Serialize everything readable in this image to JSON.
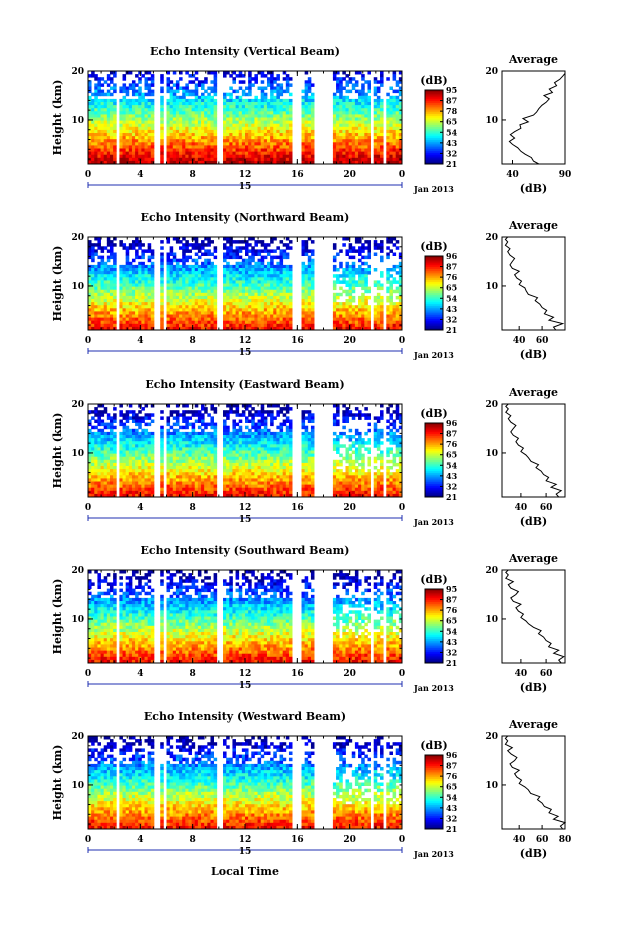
{
  "chart_data": [
    {
      "type": "heatmap",
      "title": "Echo Intensity (Vertical Beam)",
      "ylabel": "Height (km)",
      "xticks": [
        "0",
        "4",
        "8",
        "12",
        "16",
        "20",
        "0"
      ],
      "yticks": [
        "20",
        "10"
      ],
      "xlim": [
        0,
        24
      ],
      "ylim": [
        1,
        20
      ],
      "date_label": "Jan 2013",
      "day_label": "15",
      "gap_intervals_hours": [
        [
          2.1,
          2.5
        ],
        [
          5.1,
          5.4
        ],
        [
          5.7,
          5.9
        ],
        [
          9.8,
          10.3
        ],
        [
          15.7,
          16.3
        ],
        [
          17.2,
          18.8
        ],
        [
          21.7,
          21.9
        ],
        [
          22.5,
          22.8
        ]
      ],
      "colorbar": {
        "unit": "(dB)",
        "ticks": [
          "95",
          "87",
          "78",
          "65",
          "54",
          "43",
          "32",
          "21"
        ],
        "range": [
          21,
          95
        ]
      },
      "average_profile": {
        "title": "Average",
        "xlabel": "(dB)",
        "xticks": [
          "40",
          "90"
        ],
        "yticks": [
          "20",
          "10"
        ],
        "xlim": [
          30,
          90
        ],
        "x": [
          65,
          60,
          58,
          52,
          48,
          45,
          40,
          37,
          42,
          38,
          42,
          48,
          47,
          55,
          50,
          60,
          63,
          65,
          68,
          72,
          75,
          70,
          78,
          75,
          82,
          80,
          85,
          88,
          90,
          90
        ],
        "y": [
          1,
          1.6,
          2.3,
          3,
          3.6,
          4.3,
          5,
          5.6,
          6.3,
          7,
          7.6,
          8.3,
          9,
          9.6,
          10.3,
          11,
          11.6,
          12.3,
          13,
          13.6,
          14.3,
          15,
          15.6,
          16.3,
          17,
          17.6,
          18.3,
          19,
          19.5,
          20
        ]
      }
    },
    {
      "type": "heatmap",
      "title": "Echo Intensity (Northward Beam)",
      "ylabel": "Height (km)",
      "xticks": [
        "0",
        "4",
        "8",
        "12",
        "16",
        "20",
        "0"
      ],
      "yticks": [
        "20",
        "10"
      ],
      "xlim": [
        0,
        24
      ],
      "ylim": [
        1,
        20
      ],
      "date_label": "Jan 2013",
      "day_label": "15",
      "gap_intervals_hours": [
        [
          2.1,
          2.5
        ],
        [
          5.1,
          5.4
        ],
        [
          5.7,
          5.9
        ],
        [
          9.8,
          10.3
        ],
        [
          15.7,
          16.3
        ],
        [
          17.2,
          18.8
        ],
        [
          21.7,
          21.9
        ],
        [
          22.5,
          22.8
        ]
      ],
      "colorbar": {
        "unit": "(dB)",
        "ticks": [
          "96",
          "87",
          "76",
          "65",
          "54",
          "43",
          "32",
          "21"
        ],
        "range": [
          21,
          96
        ]
      },
      "average_profile": {
        "title": "Average",
        "xlabel": "(dB)",
        "xticks": [
          "40",
          "60"
        ],
        "yticks": [
          "20",
          "10"
        ],
        "xlim": [
          25,
          80
        ],
        "x": [
          72,
          70,
          78,
          66,
          70,
          62,
          64,
          60,
          58,
          54,
          56,
          48,
          46,
          45,
          40,
          42,
          38,
          36,
          40,
          34,
          32,
          34,
          36,
          32,
          30,
          32,
          28,
          30,
          28,
          30
        ],
        "y": [
          1,
          1.6,
          2.3,
          3,
          3.6,
          4.3,
          5,
          5.6,
          6.3,
          7,
          7.6,
          8.3,
          9,
          9.6,
          10.3,
          11,
          11.6,
          12.3,
          13,
          13.6,
          14.3,
          15,
          15.6,
          16.3,
          17,
          17.6,
          18.3,
          19,
          19.5,
          20
        ]
      }
    },
    {
      "type": "heatmap",
      "title": "Echo Intensity (Eastward Beam)",
      "ylabel": "Height (km)",
      "xticks": [
        "0",
        "4",
        "8",
        "12",
        "16",
        "20",
        "0"
      ],
      "yticks": [
        "20",
        "10"
      ],
      "xlim": [
        0,
        24
      ],
      "ylim": [
        1,
        20
      ],
      "date_label": "Jan 2013",
      "day_label": "15",
      "gap_intervals_hours": [
        [
          2.1,
          2.5
        ],
        [
          5.1,
          5.4
        ],
        [
          5.7,
          5.9
        ],
        [
          9.8,
          10.3
        ],
        [
          15.7,
          16.3
        ],
        [
          17.2,
          18.8
        ],
        [
          21.7,
          21.9
        ],
        [
          22.5,
          22.8
        ]
      ],
      "colorbar": {
        "unit": "(dB)",
        "ticks": [
          "96",
          "87",
          "76",
          "65",
          "54",
          "43",
          "32",
          "21"
        ],
        "range": [
          21,
          96
        ]
      },
      "average_profile": {
        "title": "Average",
        "xlabel": "(dB)",
        "xticks": [
          "40",
          "60"
        ],
        "yticks": [
          "20",
          "10"
        ],
        "xlim": [
          25,
          75
        ],
        "x": [
          70,
          68,
          72,
          64,
          68,
          60,
          62,
          58,
          56,
          52,
          54,
          48,
          46,
          44,
          40,
          42,
          38,
          36,
          38,
          34,
          32,
          34,
          36,
          32,
          30,
          32,
          28,
          30,
          28,
          30
        ],
        "y": [
          1,
          1.6,
          2.3,
          3,
          3.6,
          4.3,
          5,
          5.6,
          6.3,
          7,
          7.6,
          8.3,
          9,
          9.6,
          10.3,
          11,
          11.6,
          12.3,
          13,
          13.6,
          14.3,
          15,
          15.6,
          16.3,
          17,
          17.6,
          18.3,
          19,
          19.5,
          20
        ]
      }
    },
    {
      "type": "heatmap",
      "title": "Echo Intensity (Southward Beam)",
      "ylabel": "Height (km)",
      "xticks": [
        "0",
        "4",
        "8",
        "12",
        "16",
        "20",
        "0"
      ],
      "yticks": [
        "20",
        "10"
      ],
      "xlim": [
        0,
        24
      ],
      "ylim": [
        1,
        20
      ],
      "date_label": "Jan 2013",
      "day_label": "15",
      "gap_intervals_hours": [
        [
          2.1,
          2.5
        ],
        [
          5.1,
          5.4
        ],
        [
          5.7,
          5.9
        ],
        [
          9.8,
          10.3
        ],
        [
          15.7,
          16.3
        ],
        [
          17.2,
          18.8
        ],
        [
          21.7,
          21.9
        ],
        [
          22.5,
          22.8
        ]
      ],
      "colorbar": {
        "unit": "(dB)",
        "ticks": [
          "95",
          "87",
          "76",
          "65",
          "54",
          "43",
          "32",
          "21"
        ],
        "range": [
          21,
          95
        ]
      },
      "average_profile": {
        "title": "Average",
        "xlabel": "(dB)",
        "xticks": [
          "40",
          "60"
        ],
        "yticks": [
          "20",
          "10"
        ],
        "xlim": [
          25,
          75
        ],
        "x": [
          72,
          70,
          74,
          66,
          70,
          62,
          64,
          60,
          58,
          54,
          56,
          50,
          46,
          44,
          40,
          42,
          38,
          36,
          40,
          34,
          32,
          36,
          38,
          32,
          30,
          34,
          28,
          30,
          28,
          30
        ],
        "y": [
          1,
          1.6,
          2.3,
          3,
          3.6,
          4.3,
          5,
          5.6,
          6.3,
          7,
          7.6,
          8.3,
          9,
          9.6,
          10.3,
          11,
          11.6,
          12.3,
          13,
          13.6,
          14.3,
          15,
          15.6,
          16.3,
          17,
          17.6,
          18.3,
          19,
          19.5,
          20
        ]
      }
    },
    {
      "type": "heatmap",
      "title": "Echo Intensity (Westward Beam)",
      "ylabel": "Height (km)",
      "xlabel": "Local Time",
      "xticks": [
        "0",
        "4",
        "8",
        "12",
        "16",
        "20",
        "0"
      ],
      "yticks": [
        "20",
        "10"
      ],
      "xlim": [
        0,
        24
      ],
      "ylim": [
        1,
        20
      ],
      "date_label": "Jan 2013",
      "day_label": "15",
      "gap_intervals_hours": [
        [
          2.1,
          2.5
        ],
        [
          5.1,
          5.4
        ],
        [
          5.7,
          5.9
        ],
        [
          9.8,
          10.3
        ],
        [
          15.7,
          16.3
        ],
        [
          17.2,
          18.8
        ],
        [
          21.7,
          21.9
        ],
        [
          22.5,
          22.8
        ]
      ],
      "colorbar": {
        "unit": "(dB)",
        "ticks": [
          "96",
          "87",
          "76",
          "65",
          "54",
          "43",
          "32",
          "21"
        ],
        "range": [
          21,
          96
        ]
      },
      "average_profile": {
        "title": "Average",
        "xlabel": "(dB)",
        "xticks": [
          "40",
          "60",
          "80"
        ],
        "yticks": [
          "20",
          "10"
        ],
        "xlim": [
          25,
          80
        ],
        "x": [
          78,
          76,
          80,
          70,
          74,
          66,
          68,
          62,
          60,
          56,
          58,
          50,
          48,
          45,
          40,
          42,
          38,
          36,
          40,
          34,
          32,
          36,
          38,
          33,
          30,
          34,
          28,
          30,
          28,
          30
        ],
        "y": [
          1,
          1.6,
          2.3,
          3,
          3.6,
          4.3,
          5,
          5.6,
          6.3,
          7,
          7.6,
          8.3,
          9,
          9.6,
          10.3,
          11,
          11.6,
          12.3,
          13,
          13.6,
          14.3,
          15,
          15.6,
          16.3,
          17,
          17.6,
          18.3,
          19,
          19.5,
          20
        ]
      }
    }
  ]
}
